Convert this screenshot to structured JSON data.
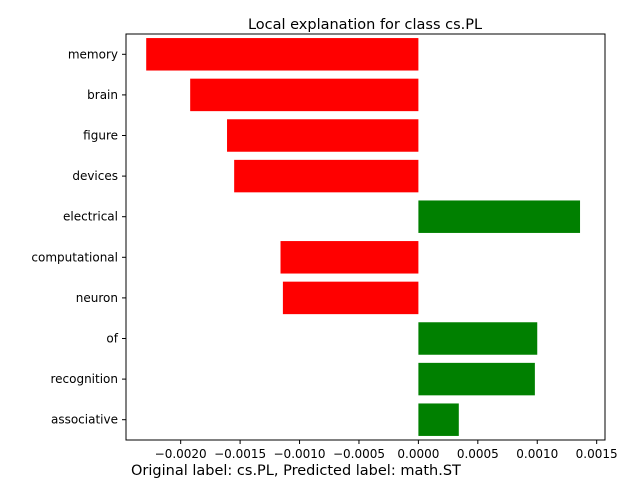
{
  "chart_data": {
    "type": "bar",
    "orientation": "horizontal",
    "title": "Local explanation for class cs.PL",
    "caption": "Original label: cs.PL, Predicted label: math.ST",
    "categories": [
      "memory",
      "brain",
      "figure",
      "devices",
      "electrical",
      "computational",
      "neuron",
      "of",
      "recognition",
      "associative"
    ],
    "values": [
      -0.00229,
      -0.00192,
      -0.00161,
      -0.00155,
      0.00136,
      -0.00116,
      -0.00114,
      0.001,
      0.00098,
      0.00034
    ],
    "xlim": [
      -0.00246,
      0.00157
    ],
    "xticks": [
      -0.002,
      -0.0015,
      -0.001,
      -0.0005,
      0.0,
      0.0005,
      0.001,
      0.0015
    ],
    "xtick_labels": [
      "−0.0020",
      "−0.0015",
      "−0.0010",
      "−0.0005",
      "0.0000",
      "0.0005",
      "0.0010",
      "0.0015"
    ],
    "grid": false,
    "colors": {
      "positive": "#008000",
      "negative": "#ff0000"
    }
  }
}
